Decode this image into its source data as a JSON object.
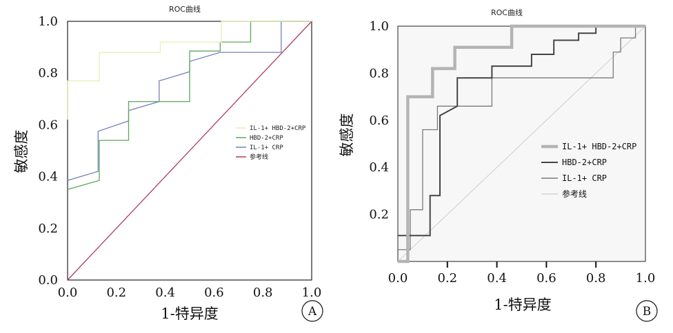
{
  "chart_data": [
    {
      "type": "line",
      "panel": "A",
      "title": "ROC曲线",
      "xlabel": "1-特异度",
      "ylabel": "敏感度",
      "xlim": [
        0,
        1
      ],
      "ylim": [
        0,
        1
      ],
      "x_ticks": [
        "0.0",
        "0.2",
        "0.4",
        "0.6",
        "0.8",
        "1.0"
      ],
      "y_ticks": [
        "0.0",
        "0.2",
        "0.4",
        "0.6",
        "0.8",
        "1.0"
      ],
      "legend_position": "center-right",
      "grid": false,
      "series": [
        {
          "name": "IL-1+ HBD-2+CRP",
          "color": "#e9eeb0",
          "width": 1.3,
          "points": [
            [
              0,
              0.62
            ],
            [
              0,
              0.77
            ],
            [
              0.13,
              0.77
            ],
            [
              0.13,
              0.88
            ],
            [
              0.38,
              0.88
            ],
            [
              0.38,
              0.92
            ],
            [
              0.63,
              0.92
            ],
            [
              0.63,
              1.0
            ],
            [
              1.0,
              1.0
            ]
          ]
        },
        {
          "name": "HBD-2+CRP",
          "color": "#5fa55a",
          "width": 1.3,
          "points": [
            [
              0,
              0.35
            ],
            [
              0.13,
              0.385
            ],
            [
              0.13,
              0.54
            ],
            [
              0.25,
              0.54
            ],
            [
              0.25,
              0.69
            ],
            [
              0.5,
              0.69
            ],
            [
              0.5,
              0.885
            ],
            [
              0.625,
              0.885
            ],
            [
              0.625,
              0.92
            ],
            [
              0.75,
              0.92
            ],
            [
              0.75,
              1.0
            ],
            [
              1.0,
              1.0
            ]
          ]
        },
        {
          "name": "IL-1+ CRP",
          "color": "#6f7fc0",
          "width": 1.3,
          "points": [
            [
              0,
              0.385
            ],
            [
              0.125,
              0.42
            ],
            [
              0.125,
              0.575
            ],
            [
              0.25,
              0.615
            ],
            [
              0.25,
              0.655
            ],
            [
              0.375,
              0.69
            ],
            [
              0.375,
              0.77
            ],
            [
              0.5,
              0.805
            ],
            [
              0.5,
              0.845
            ],
            [
              0.625,
              0.88
            ],
            [
              0.875,
              0.88
            ],
            [
              0.875,
              1.0
            ],
            [
              1.0,
              1.0
            ]
          ]
        },
        {
          "name": "参考线",
          "color": "#b23a5a",
          "width": 1.3,
          "points": [
            [
              0,
              0
            ],
            [
              1,
              1
            ]
          ]
        }
      ]
    },
    {
      "type": "line",
      "panel": "B",
      "title": "ROC曲线",
      "xlabel": "1-特异度",
      "ylabel": "敏感度",
      "xlim": [
        0,
        1
      ],
      "ylim": [
        0,
        1
      ],
      "x_ticks": [
        "0.0",
        "0.2",
        "0.4",
        "0.6",
        "0.8",
        "1.0"
      ],
      "y_ticks": [
        "0.2",
        "0.4",
        "0.6",
        "0.8",
        "1.0"
      ],
      "legend_position": "center-right",
      "grid": false,
      "series": [
        {
          "name": "IL-1+ HBD-2+CRP",
          "color": "#b4b4b4",
          "width": 4.5,
          "points": [
            [
              0,
              0.0
            ],
            [
              0.04,
              0.0
            ],
            [
              0.04,
              0.7
            ],
            [
              0.14,
              0.7
            ],
            [
              0.14,
              0.82
            ],
            [
              0.23,
              0.82
            ],
            [
              0.23,
              0.91
            ],
            [
              0.46,
              0.91
            ],
            [
              0.46,
              1.0
            ],
            [
              1.0,
              1.0
            ]
          ]
        },
        {
          "name": "HBD-2+CRP",
          "color": "#444444",
          "width": 2,
          "points": [
            [
              0,
              0.11
            ],
            [
              0.13,
              0.11
            ],
            [
              0.13,
              0.28
            ],
            [
              0.17,
              0.28
            ],
            [
              0.17,
              0.62
            ],
            [
              0.24,
              0.66
            ],
            [
              0.24,
              0.78
            ],
            [
              0.38,
              0.78
            ],
            [
              0.38,
              0.83
            ],
            [
              0.54,
              0.83
            ],
            [
              0.54,
              0.88
            ],
            [
              0.63,
              0.88
            ],
            [
              0.63,
              0.94
            ],
            [
              0.73,
              0.94
            ],
            [
              0.73,
              0.97
            ],
            [
              0.8,
              0.97
            ],
            [
              0.8,
              1.0
            ],
            [
              1.0,
              1.0
            ]
          ]
        },
        {
          "name": "IL-1+ CRP",
          "color": "#7a7a7a",
          "width": 1.3,
          "points": [
            [
              0,
              0.05
            ],
            [
              0.05,
              0.05
            ],
            [
              0.05,
              0.22
            ],
            [
              0.1,
              0.22
            ],
            [
              0.1,
              0.56
            ],
            [
              0.16,
              0.56
            ],
            [
              0.16,
              0.66
            ],
            [
              0.38,
              0.66
            ],
            [
              0.38,
              0.78
            ],
            [
              0.87,
              0.78
            ],
            [
              0.87,
              0.89
            ],
            [
              0.9,
              0.89
            ],
            [
              0.9,
              0.95
            ],
            [
              0.96,
              0.95
            ],
            [
              0.96,
              1.0
            ],
            [
              1.0,
              1.0
            ]
          ]
        },
        {
          "name": "参考线",
          "color": "#d4d4d4",
          "width": 1.2,
          "points": [
            [
              0,
              0
            ],
            [
              1,
              1
            ]
          ]
        }
      ]
    }
  ],
  "panel_labels": [
    "A",
    "B"
  ]
}
